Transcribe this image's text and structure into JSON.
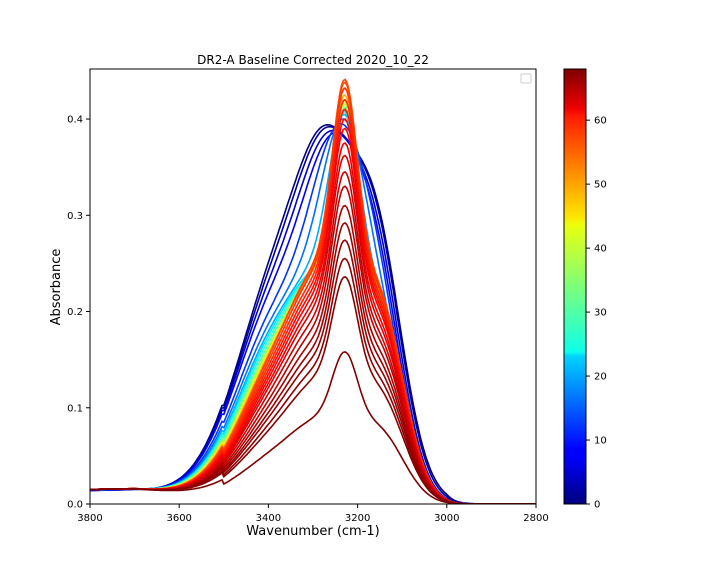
{
  "chart_data": {
    "type": "line",
    "title": "DR2-A Baseline Corrected 2020_10_22",
    "xlabel": "Wavenumber (cm-1)",
    "ylabel": "Absorbance",
    "xlim": [
      3800,
      2800
    ],
    "ylim": [
      0,
      0.452
    ],
    "x_reversed": true,
    "grid": false,
    "legend": "top-right, empty",
    "x_ticks": [
      3800,
      3600,
      3400,
      3200,
      3000,
      2800
    ],
    "x_tick_labels": [
      "3800",
      "3600",
      "3400",
      "3200",
      "3000",
      "2800"
    ],
    "y_ticks": [
      0.0,
      0.1,
      0.2,
      0.3,
      0.4
    ],
    "y_tick_labels": [
      "0.0",
      "0.1",
      "0.2",
      "0.3",
      "0.4"
    ],
    "colorbar": {
      "colormap": "jet",
      "range": [
        0,
        68
      ],
      "ticks": [
        0,
        10,
        20,
        30,
        40,
        50,
        60
      ],
      "tick_labels": [
        "0",
        "10",
        "20",
        "30",
        "40",
        "50",
        "60"
      ]
    },
    "series_model": {
      "note_units": "absorbance peak heights (data units) per time index",
      "series": [
        {
          "index": 0,
          "peak": 0.394,
          "broad": 0.27
        },
        {
          "index": 2,
          "peak": 0.392,
          "broad": 0.265
        },
        {
          "index": 5,
          "peak": 0.388,
          "broad": 0.26
        },
        {
          "index": 8,
          "peak": 0.386,
          "broad": 0.25
        },
        {
          "index": 12,
          "peak": 0.395,
          "broad": 0.225
        },
        {
          "index": 16,
          "peak": 0.4,
          "broad": 0.21
        },
        {
          "index": 20,
          "peak": 0.405,
          "broad": 0.2
        },
        {
          "index": 24,
          "peak": 0.408,
          "broad": 0.195
        },
        {
          "index": 28,
          "peak": 0.41,
          "broad": 0.19
        },
        {
          "index": 32,
          "peak": 0.412,
          "broad": 0.185
        },
        {
          "index": 36,
          "peak": 0.415,
          "broad": 0.18
        },
        {
          "index": 40,
          "peak": 0.418,
          "broad": 0.177
        },
        {
          "index": 44,
          "peak": 0.42,
          "broad": 0.175
        },
        {
          "index": 48,
          "peak": 0.425,
          "broad": 0.173
        },
        {
          "index": 52,
          "peak": 0.432,
          "broad": 0.172
        },
        {
          "index": 54,
          "peak": 0.438,
          "broad": 0.171
        },
        {
          "index": 55,
          "peak": 0.441,
          "broad": 0.17
        },
        {
          "index": 56,
          "peak": 0.432,
          "broad": 0.165
        },
        {
          "index": 57,
          "peak": 0.42,
          "broad": 0.16
        },
        {
          "index": 58,
          "peak": 0.41,
          "broad": 0.155
        },
        {
          "index": 59,
          "peak": 0.4,
          "broad": 0.15
        },
        {
          "index": 60,
          "peak": 0.39,
          "broad": 0.145
        },
        {
          "index": 61,
          "peak": 0.375,
          "broad": 0.14
        },
        {
          "index": 62,
          "peak": 0.362,
          "broad": 0.135
        },
        {
          "index": 63,
          "peak": 0.345,
          "broad": 0.128
        },
        {
          "index": 64,
          "peak": 0.33,
          "broad": 0.12
        },
        {
          "index": 65,
          "peak": 0.31,
          "broad": 0.113
        },
        {
          "index": 66,
          "peak": 0.292,
          "broad": 0.106
        },
        {
          "index": 66.5,
          "peak": 0.274,
          "broad": 0.1
        },
        {
          "index": 67,
          "peak": 0.255,
          "broad": 0.092
        },
        {
          "index": 67.5,
          "peak": 0.236,
          "broad": 0.085
        },
        {
          "index": 68,
          "peak": 0.158,
          "broad": 0.06
        }
      ]
    }
  }
}
